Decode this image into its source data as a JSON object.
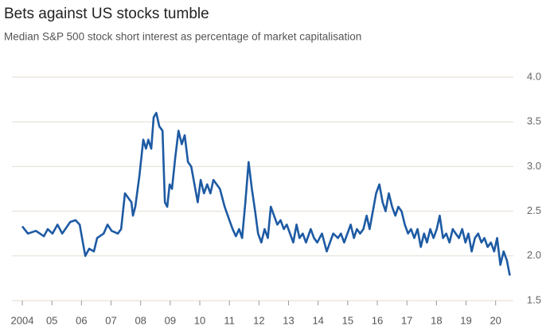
{
  "chart_data": {
    "type": "line",
    "title": "Bets against US stocks tumble",
    "subtitle": "Median S&P 500 stock short interest as percentage of market capitalisation",
    "x": [
      2004.0,
      2004.19,
      2004.46,
      2004.73,
      2004.86,
      2005.02,
      2005.19,
      2005.35,
      2005.62,
      2005.8,
      2005.94,
      2006.02,
      2006.13,
      2006.26,
      2006.42,
      2006.53,
      2006.75,
      2006.88,
      2007.02,
      2007.23,
      2007.34,
      2007.47,
      2007.69,
      2007.74,
      2007.82,
      2007.96,
      2008.09,
      2008.18,
      2008.26,
      2008.36,
      2008.44,
      2008.53,
      2008.63,
      2008.74,
      2008.82,
      2008.9,
      2008.98,
      2009.06,
      2009.17,
      2009.28,
      2009.39,
      2009.49,
      2009.6,
      2009.71,
      2009.82,
      2009.93,
      2010.03,
      2010.14,
      2010.25,
      2010.36,
      2010.46,
      2010.57,
      2010.68,
      2010.84,
      2011.0,
      2011.11,
      2011.22,
      2011.33,
      2011.43,
      2011.54,
      2011.65,
      2011.76,
      2011.87,
      2011.97,
      2012.08,
      2012.19,
      2012.3,
      2012.4,
      2012.51,
      2012.62,
      2012.73,
      2012.84,
      2012.94,
      2013.05,
      2013.16,
      2013.27,
      2013.37,
      2013.48,
      2013.59,
      2013.75,
      2013.86,
      2013.97,
      2014.13,
      2014.29,
      2014.4,
      2014.51,
      2014.67,
      2014.77,
      2014.88,
      2014.99,
      2015.1,
      2015.21,
      2015.31,
      2015.42,
      2015.53,
      2015.64,
      2015.74,
      2015.85,
      2015.96,
      2016.07,
      2016.18,
      2016.28,
      2016.39,
      2016.5,
      2016.61,
      2016.71,
      2016.82,
      2016.93,
      2017.04,
      2017.14,
      2017.25,
      2017.36,
      2017.47,
      2017.58,
      2017.68,
      2017.79,
      2017.9,
      2018.01,
      2018.11,
      2018.22,
      2018.33,
      2018.44,
      2018.55,
      2018.65,
      2018.76,
      2018.87,
      2018.98,
      2019.08,
      2019.19,
      2019.3,
      2019.41,
      2019.52,
      2019.62,
      2019.73,
      2019.84,
      2019.95,
      2020.05,
      2020.16,
      2020.27,
      2020.38,
      2020.48
    ],
    "series": [
      {
        "color": "#1d5aa3",
        "values": [
          2.33,
          2.25,
          2.28,
          2.22,
          2.3,
          2.25,
          2.35,
          2.25,
          2.38,
          2.4,
          2.35,
          2.2,
          2.0,
          2.08,
          2.05,
          2.2,
          2.25,
          2.35,
          2.28,
          2.25,
          2.3,
          2.7,
          2.6,
          2.45,
          2.55,
          2.9,
          3.3,
          3.2,
          3.3,
          3.2,
          3.55,
          3.6,
          3.45,
          3.4,
          2.6,
          2.55,
          2.8,
          2.75,
          3.1,
          3.4,
          3.25,
          3.35,
          3.05,
          3.0,
          2.8,
          2.6,
          2.85,
          2.7,
          2.8,
          2.7,
          2.85,
          2.8,
          2.75,
          2.55,
          2.4,
          2.3,
          2.22,
          2.3,
          2.2,
          2.6,
          3.05,
          2.75,
          2.5,
          2.25,
          2.15,
          2.3,
          2.2,
          2.55,
          2.45,
          2.35,
          2.4,
          2.3,
          2.35,
          2.25,
          2.15,
          2.35,
          2.2,
          2.25,
          2.15,
          2.3,
          2.2,
          2.15,
          2.25,
          2.05,
          2.15,
          2.25,
          2.2,
          2.25,
          2.15,
          2.25,
          2.35,
          2.2,
          2.3,
          2.25,
          2.3,
          2.45,
          2.3,
          2.5,
          2.7,
          2.8,
          2.6,
          2.5,
          2.7,
          2.55,
          2.45,
          2.55,
          2.5,
          2.35,
          2.25,
          2.3,
          2.2,
          2.3,
          2.1,
          2.25,
          2.15,
          2.3,
          2.2,
          2.3,
          2.45,
          2.2,
          2.25,
          2.15,
          2.3,
          2.25,
          2.2,
          2.3,
          2.15,
          2.25,
          2.05,
          2.2,
          2.25,
          2.15,
          2.2,
          2.1,
          2.15,
          2.05,
          2.2,
          1.9,
          2.05,
          1.95,
          1.78
        ]
      }
    ],
    "xlim": [
      2003.65,
      2020.6
    ],
    "xticks": [
      {
        "value": 2004,
        "label": "2004"
      },
      {
        "value": 2005,
        "label": "05"
      },
      {
        "value": 2006,
        "label": "06"
      },
      {
        "value": 2007,
        "label": "07"
      },
      {
        "value": 2008,
        "label": "08"
      },
      {
        "value": 2009,
        "label": "09"
      },
      {
        "value": 2010,
        "label": "10"
      },
      {
        "value": 2011,
        "label": "11"
      },
      {
        "value": 2012,
        "label": "12"
      },
      {
        "value": 2013,
        "label": "13"
      },
      {
        "value": 2014,
        "label": "14"
      },
      {
        "value": 2015,
        "label": "15"
      },
      {
        "value": 2016,
        "label": "16"
      },
      {
        "value": 2017,
        "label": "17"
      },
      {
        "value": 2018,
        "label": "18"
      },
      {
        "value": 2019,
        "label": "19"
      },
      {
        "value": 2020,
        "label": "20"
      }
    ],
    "ylim": [
      1.5,
      4.0
    ],
    "yticks": [
      1.5,
      {
        "value": 2,
        "label": "2.0"
      },
      2.5,
      {
        "value": 3,
        "label": "3.0"
      },
      3.5,
      {
        "value": 4,
        "label": "4.0"
      }
    ],
    "grid": true
  }
}
